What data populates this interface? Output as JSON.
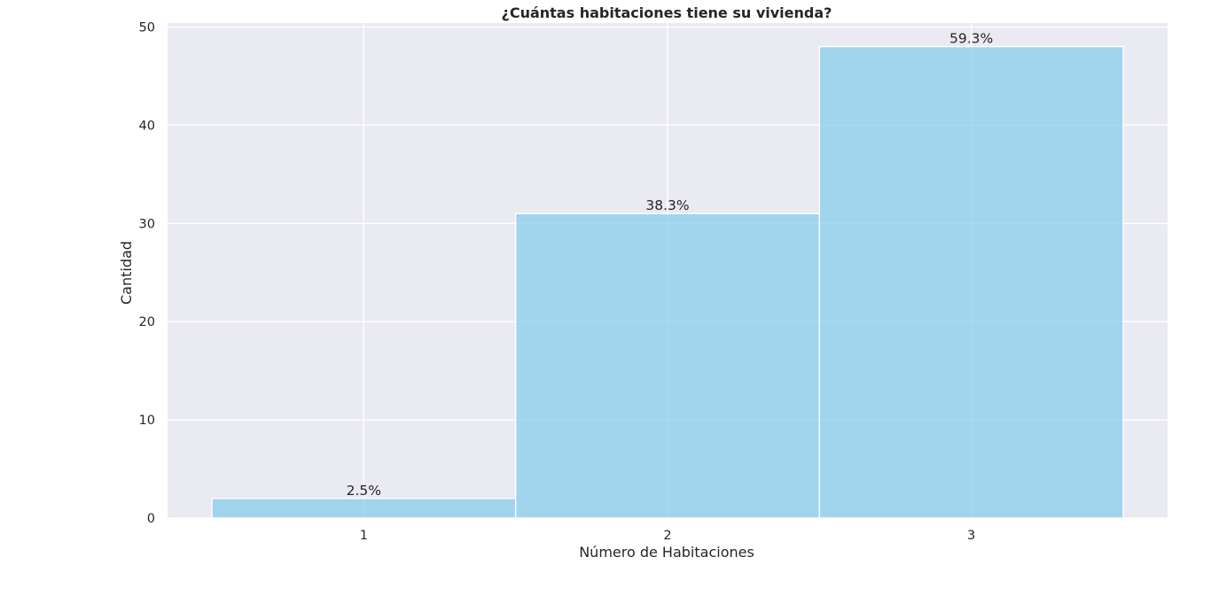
{
  "chart_data": {
    "type": "bar",
    "title": "¿Cuántas habitaciones tiene su vivienda?",
    "xlabel": "Número de Habitaciones",
    "ylabel": "Cantidad",
    "categories": [
      "1",
      "2",
      "3"
    ],
    "values": [
      2,
      31,
      48
    ],
    "data_labels": [
      "2.5%",
      "38.3%",
      "59.3%"
    ],
    "ylim": [
      0,
      50.4
    ],
    "yticks": [
      0,
      10,
      20,
      30,
      40,
      50
    ],
    "grid": true,
    "colors": {
      "bar": "#87ceeb",
      "bar_edge": "#ffffff",
      "plot_background": "#eaeaf2",
      "grid": "#ffffff"
    }
  }
}
